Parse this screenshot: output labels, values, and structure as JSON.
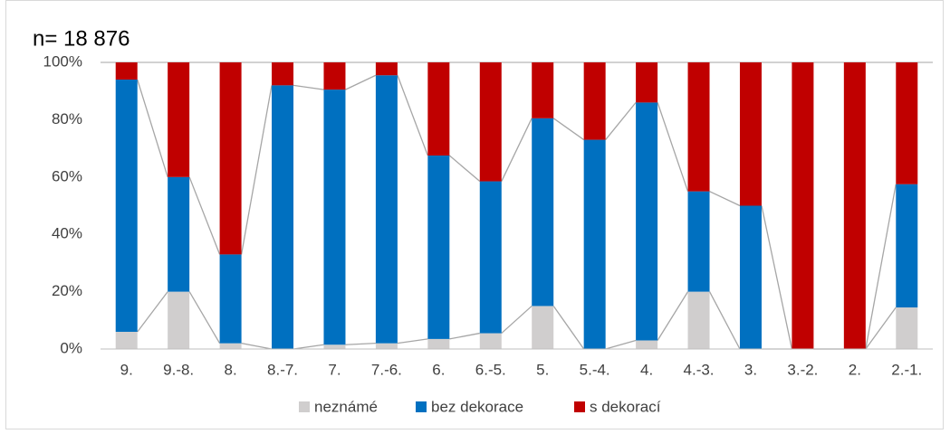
{
  "chart_data": {
    "type": "stacked-bar",
    "title": "n= 18 876",
    "categories": [
      "9.",
      "9.-8.",
      "8.",
      "8.-7.",
      "7.",
      "7.-6.",
      "6.",
      "6.-5.",
      "5.",
      "5.-4.",
      "4.",
      "4.-3.",
      "3.",
      "3.-2.",
      "2.",
      "2.-1."
    ],
    "series": [
      {
        "name": "neznámé",
        "color": "#d0cece",
        "values": [
          6,
          20,
          2,
          0,
          1.5,
          2,
          3.5,
          5.5,
          15,
          0,
          3,
          20,
          0,
          0,
          0,
          14.5
        ]
      },
      {
        "name": "bez dekorace",
        "color": "#0070c0",
        "values": [
          88,
          40,
          31,
          92,
          89,
          93.5,
          64,
          53,
          65.5,
          73,
          83,
          35,
          50,
          0,
          0,
          43
        ]
      },
      {
        "name": "s dekorací",
        "color": "#c00000",
        "values": [
          6,
          40,
          67,
          8,
          9.5,
          4.5,
          32.5,
          41.5,
          19.5,
          27,
          14,
          45,
          50,
          100,
          100,
          42.5
        ]
      }
    ],
    "ylim": [
      0,
      100
    ],
    "yticks": [
      {
        "value": 0,
        "label": "0%"
      },
      {
        "value": 20,
        "label": "20%"
      },
      {
        "value": 40,
        "label": "40%"
      },
      {
        "value": 60,
        "label": "60%"
      },
      {
        "value": 80,
        "label": "80%"
      },
      {
        "value": 100,
        "label": "100%"
      }
    ],
    "grid": false,
    "series_lines": true,
    "legend": "bottom"
  }
}
